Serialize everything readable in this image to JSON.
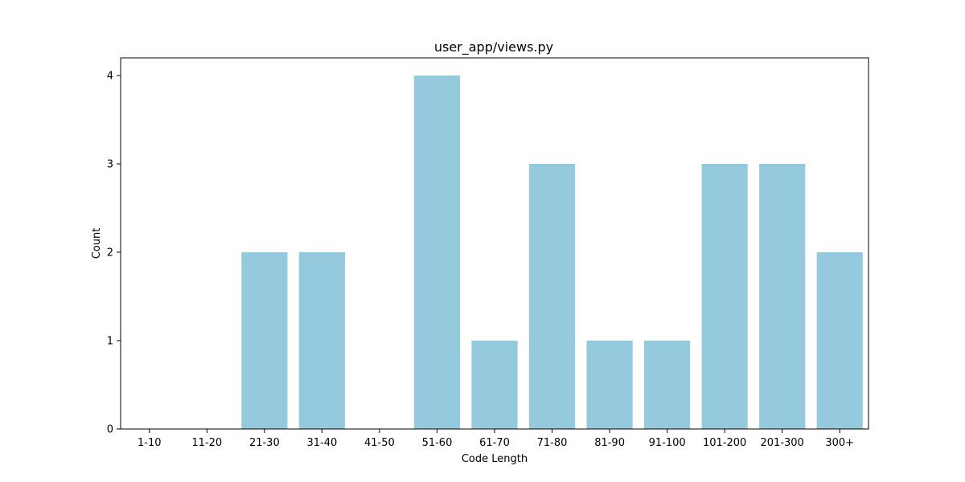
{
  "chart_data": {
    "type": "bar",
    "title": "user_app/views.py",
    "xlabel": "Code Length",
    "ylabel": "Count",
    "categories": [
      "1-10",
      "11-20",
      "21-30",
      "31-40",
      "41-50",
      "51-60",
      "61-70",
      "71-80",
      "81-90",
      "91-100",
      "101-200",
      "201-300",
      "300+"
    ],
    "values": [
      0,
      0,
      2,
      2,
      0,
      4,
      1,
      3,
      1,
      1,
      3,
      3,
      2
    ],
    "ylim": [
      0,
      4.2
    ],
    "yticks": [
      0,
      1,
      2,
      3,
      4
    ],
    "bar_color": "#95c9de",
    "grid": false,
    "legend": "none"
  }
}
